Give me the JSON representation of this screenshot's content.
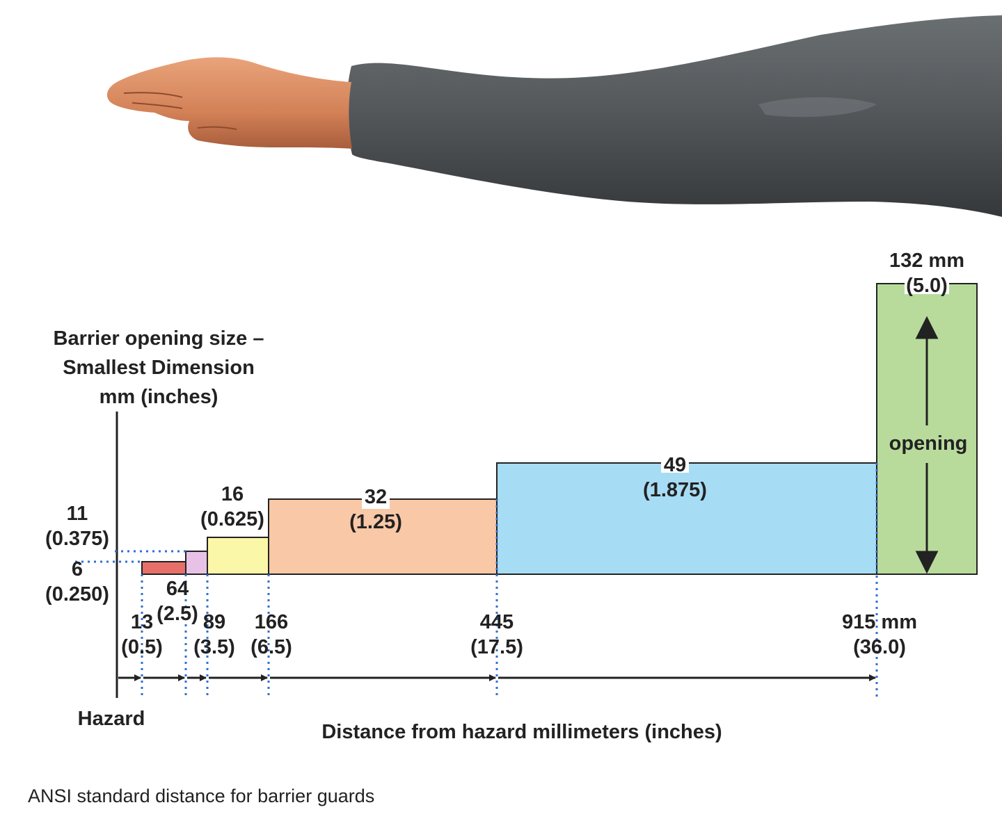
{
  "y_axis_title": [
    "Barrier opening size –",
    "Smallest Dimension",
    "mm (inches)"
  ],
  "hazard_label": "Hazard",
  "x_axis_title": "Distance from hazard millimeters (inches)",
  "caption": "ANSI standard distance for barrier guards",
  "opening_label": "opening",
  "opening_sizes": {
    "s6": [
      "6",
      "(0.250)"
    ],
    "s11": [
      "11",
      "(0.375)"
    ],
    "s16": [
      "16",
      "(0.625)"
    ],
    "s32": [
      "32",
      "(1.25)"
    ],
    "s49": [
      "49",
      "(1.875)"
    ],
    "s132": [
      "132 mm",
      "(5.0)"
    ]
  },
  "distances": {
    "d13": [
      "13",
      "(0.5)"
    ],
    "d64": [
      "64",
      "(2.5)"
    ],
    "d89": [
      "89",
      "(3.5)"
    ],
    "d166": [
      "166",
      "(6.5)"
    ],
    "d445": [
      "445",
      "(17.5)"
    ],
    "d915": [
      "915 mm",
      "(36.0)"
    ]
  },
  "colors": {
    "step_13_64": "#e8706a",
    "step_64_89": "#e7c2e6",
    "step_89_166": "#fbf7a8",
    "step_166_445": "#f9c8a6",
    "step_445_915": "#a7dcf5",
    "step_915": "#b8db9c",
    "sleeve": "#4f5457",
    "skin": "#d78a5f",
    "guide_dots": "#2f6fd0"
  },
  "arm_icon": "arm-reaching-icon"
}
